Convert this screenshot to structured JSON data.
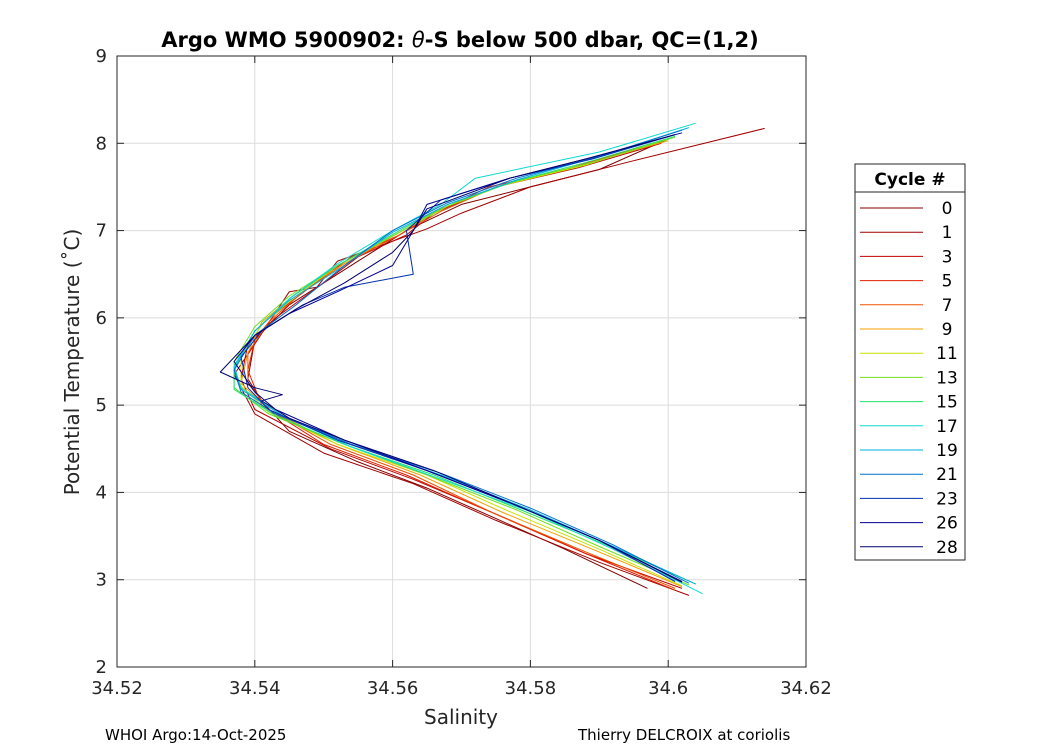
{
  "chart_data": {
    "type": "line",
    "title": "Argo WMO 5900902: θ-S below 500 dbar,  QC=(1,2)",
    "title_parts": {
      "before": "Argo WMO 5900902: ",
      "symbol": "θ",
      "after": "-S below 500 dbar,  QC=(1,2)"
    },
    "xlabel": "Salinity",
    "ylabel": "Potential Temperature (˚C)",
    "xlim": [
      34.52,
      34.62
    ],
    "ylim": [
      2,
      9
    ],
    "xticks": [
      34.52,
      34.54,
      34.56,
      34.58,
      34.6,
      34.62
    ],
    "xtick_labels": [
      "34.52",
      "34.54",
      "34.56",
      "34.58",
      "34.6",
      "34.62"
    ],
    "yticks": [
      2,
      3,
      4,
      5,
      6,
      7,
      8,
      9
    ],
    "ytick_labels": [
      "2",
      "3",
      "4",
      "5",
      "6",
      "7",
      "8",
      "9"
    ],
    "grid": true,
    "legend": {
      "title": "Cycle #",
      "placement": "outside-right"
    },
    "series": [
      {
        "name": "0",
        "color": "#800000",
        "points": [
          [
            34.6,
            8.05
          ],
          [
            34.59,
            7.7
          ],
          [
            34.58,
            7.5
          ],
          [
            34.57,
            7.3
          ],
          [
            34.562,
            7.0
          ],
          [
            34.555,
            6.65
          ],
          [
            34.545,
            6.15
          ],
          [
            34.54,
            5.75
          ],
          [
            34.539,
            5.3
          ],
          [
            34.541,
            5.05
          ],
          [
            34.545,
            4.7
          ],
          [
            34.555,
            4.35
          ],
          [
            34.565,
            4.05
          ],
          [
            34.575,
            3.7
          ],
          [
            34.585,
            3.35
          ],
          [
            34.597,
            2.9
          ]
        ]
      },
      {
        "name": "1",
        "color": "#a00000",
        "points": [
          [
            34.614,
            8.17
          ],
          [
            34.595,
            7.8
          ],
          [
            34.58,
            7.5
          ],
          [
            34.57,
            7.2
          ],
          [
            34.565,
            7.02
          ],
          [
            34.552,
            6.65
          ],
          [
            34.549,
            6.35
          ],
          [
            34.545,
            6.3
          ],
          [
            34.54,
            5.7
          ],
          [
            34.537,
            5.35
          ],
          [
            34.54,
            4.9
          ],
          [
            34.55,
            4.45
          ],
          [
            34.563,
            4.1
          ],
          [
            34.575,
            3.68
          ],
          [
            34.59,
            3.2
          ],
          [
            34.603,
            2.82
          ]
        ]
      },
      {
        "name": "3",
        "color": "#c00000",
        "points": [
          [
            34.599,
            8.0
          ],
          [
            34.587,
            7.72
          ],
          [
            34.575,
            7.5
          ],
          [
            34.566,
            7.2
          ],
          [
            34.562,
            6.95
          ],
          [
            34.555,
            6.7
          ],
          [
            34.55,
            6.4
          ],
          [
            34.543,
            6.0
          ],
          [
            34.539,
            5.7
          ],
          [
            34.538,
            5.3
          ],
          [
            34.54,
            4.95
          ],
          [
            34.551,
            4.5
          ],
          [
            34.563,
            4.15
          ],
          [
            34.576,
            3.72
          ],
          [
            34.588,
            3.3
          ],
          [
            34.602,
            2.9
          ]
        ]
      },
      {
        "name": "5",
        "color": "#e02000",
        "points": [
          [
            34.598,
            8.0
          ],
          [
            34.585,
            7.7
          ],
          [
            34.574,
            7.5
          ],
          [
            34.566,
            7.2
          ],
          [
            34.561,
            6.95
          ],
          [
            34.554,
            6.7
          ],
          [
            34.548,
            6.35
          ],
          [
            34.543,
            6.05
          ],
          [
            34.54,
            5.75
          ],
          [
            34.539,
            5.4
          ],
          [
            34.541,
            5.0
          ],
          [
            34.55,
            4.55
          ],
          [
            34.562,
            4.2
          ],
          [
            34.575,
            3.75
          ],
          [
            34.588,
            3.3
          ],
          [
            34.601,
            2.88
          ]
        ]
      },
      {
        "name": "7",
        "color": "#f05000",
        "points": [
          [
            34.599,
            8.02
          ],
          [
            34.586,
            7.72
          ],
          [
            34.575,
            7.5
          ],
          [
            34.567,
            7.22
          ],
          [
            34.561,
            6.95
          ],
          [
            34.553,
            6.62
          ],
          [
            34.547,
            6.3
          ],
          [
            34.542,
            5.95
          ],
          [
            34.539,
            5.6
          ],
          [
            34.539,
            5.25
          ],
          [
            34.542,
            4.95
          ],
          [
            34.551,
            4.55
          ],
          [
            34.563,
            4.2
          ],
          [
            34.575,
            3.75
          ],
          [
            34.588,
            3.32
          ],
          [
            34.601,
            2.9
          ]
        ]
      },
      {
        "name": "9",
        "color": "#f0a000",
        "points": [
          [
            34.6,
            8.03
          ],
          [
            34.587,
            7.74
          ],
          [
            34.576,
            7.52
          ],
          [
            34.567,
            7.25
          ],
          [
            34.561,
            6.98
          ],
          [
            34.553,
            6.62
          ],
          [
            34.546,
            6.28
          ],
          [
            34.541,
            5.95
          ],
          [
            34.539,
            5.6
          ],
          [
            34.538,
            5.25
          ],
          [
            34.542,
            4.95
          ],
          [
            34.552,
            4.55
          ],
          [
            34.564,
            4.2
          ],
          [
            34.576,
            3.77
          ],
          [
            34.589,
            3.35
          ],
          [
            34.602,
            2.92
          ]
        ]
      },
      {
        "name": "11",
        "color": "#c8e000",
        "points": [
          [
            34.6,
            8.05
          ],
          [
            34.588,
            7.75
          ],
          [
            34.576,
            7.52
          ],
          [
            34.568,
            7.28
          ],
          [
            34.561,
            6.98
          ],
          [
            34.552,
            6.6
          ],
          [
            34.546,
            6.25
          ],
          [
            34.541,
            5.92
          ],
          [
            34.538,
            5.55
          ],
          [
            34.538,
            5.22
          ],
          [
            34.542,
            4.92
          ],
          [
            34.552,
            4.55
          ],
          [
            34.565,
            4.2
          ],
          [
            34.577,
            3.78
          ],
          [
            34.59,
            3.35
          ],
          [
            34.602,
            2.93
          ]
        ]
      },
      {
        "name": "13",
        "color": "#70e020",
        "points": [
          [
            34.601,
            8.07
          ],
          [
            34.589,
            7.78
          ],
          [
            34.577,
            7.55
          ],
          [
            34.568,
            7.28
          ],
          [
            34.561,
            6.98
          ],
          [
            34.552,
            6.6
          ],
          [
            34.545,
            6.25
          ],
          [
            34.54,
            5.9
          ],
          [
            34.537,
            5.5
          ],
          [
            34.537,
            5.2
          ],
          [
            34.542,
            4.9
          ],
          [
            34.553,
            4.55
          ],
          [
            34.565,
            4.2
          ],
          [
            34.578,
            3.8
          ],
          [
            34.59,
            3.38
          ],
          [
            34.603,
            2.94
          ]
        ]
      },
      {
        "name": "15",
        "color": "#20e070",
        "points": [
          [
            34.601,
            8.08
          ],
          [
            34.589,
            7.8
          ],
          [
            34.578,
            7.57
          ],
          [
            34.568,
            7.3
          ],
          [
            34.561,
            7.0
          ],
          [
            34.552,
            6.6
          ],
          [
            34.545,
            6.22
          ],
          [
            34.54,
            5.85
          ],
          [
            34.537,
            5.45
          ],
          [
            34.537,
            5.18
          ],
          [
            34.543,
            4.88
          ],
          [
            34.553,
            4.55
          ],
          [
            34.566,
            4.2
          ],
          [
            34.578,
            3.82
          ],
          [
            34.591,
            3.4
          ],
          [
            34.604,
            2.95
          ]
        ]
      },
      {
        "name": "17",
        "color": "#10d8d0",
        "points": [
          [
            34.604,
            8.23
          ],
          [
            34.59,
            7.9
          ],
          [
            34.572,
            7.6
          ],
          [
            34.567,
            7.3
          ],
          [
            34.56,
            7.0
          ],
          [
            34.552,
            6.62
          ],
          [
            34.545,
            6.22
          ],
          [
            34.54,
            5.85
          ],
          [
            34.537,
            5.45
          ],
          [
            34.538,
            5.2
          ],
          [
            34.544,
            4.88
          ],
          [
            34.554,
            4.52
          ],
          [
            34.566,
            4.18
          ],
          [
            34.58,
            3.78
          ],
          [
            34.592,
            3.35
          ],
          [
            34.605,
            2.84
          ]
        ]
      },
      {
        "name": "19",
        "color": "#00b0e0",
        "points": [
          [
            34.603,
            8.18
          ],
          [
            34.59,
            7.85
          ],
          [
            34.578,
            7.58
          ],
          [
            34.568,
            7.3
          ],
          [
            34.56,
            6.98
          ],
          [
            34.553,
            6.6
          ],
          [
            34.545,
            6.2
          ],
          [
            34.54,
            5.85
          ],
          [
            34.537,
            5.42
          ],
          [
            34.538,
            5.18
          ],
          [
            34.544,
            4.88
          ],
          [
            34.554,
            4.55
          ],
          [
            34.567,
            4.2
          ],
          [
            34.58,
            3.8
          ],
          [
            34.592,
            3.38
          ],
          [
            34.604,
            2.95
          ]
        ]
      },
      {
        "name": "21",
        "color": "#0070d0",
        "points": [
          [
            34.602,
            8.15
          ],
          [
            34.59,
            7.85
          ],
          [
            34.578,
            7.6
          ],
          [
            34.568,
            7.32
          ],
          [
            34.56,
            7.0
          ],
          [
            34.553,
            6.6
          ],
          [
            34.546,
            6.15
          ],
          [
            34.54,
            5.8
          ],
          [
            34.537,
            5.4
          ],
          [
            34.538,
            5.15
          ],
          [
            34.543,
            4.9
          ],
          [
            34.554,
            4.55
          ],
          [
            34.567,
            4.22
          ],
          [
            34.58,
            3.82
          ],
          [
            34.592,
            3.4
          ],
          [
            34.603,
            2.96
          ]
        ]
      },
      {
        "name": "23",
        "color": "#0030b0",
        "points": [
          [
            34.601,
            8.1
          ],
          [
            34.589,
            7.82
          ],
          [
            34.577,
            7.6
          ],
          [
            34.567,
            7.35
          ],
          [
            34.562,
            7.0
          ],
          [
            34.563,
            6.5
          ],
          [
            34.553,
            6.35
          ],
          [
            34.547,
            6.15
          ],
          [
            34.541,
            5.85
          ],
          [
            34.538,
            5.55
          ],
          [
            34.539,
            5.2
          ],
          [
            34.542,
            4.95
          ],
          [
            34.552,
            4.6
          ],
          [
            34.565,
            4.25
          ],
          [
            34.578,
            3.85
          ],
          [
            34.59,
            3.45
          ],
          [
            34.601,
            2.98
          ]
        ]
      },
      {
        "name": "26",
        "color": "#000090",
        "points": [
          [
            34.602,
            8.12
          ],
          [
            34.589,
            7.84
          ],
          [
            34.577,
            7.6
          ],
          [
            34.565,
            7.3
          ],
          [
            34.563,
            7.0
          ],
          [
            34.56,
            6.6
          ],
          [
            34.552,
            6.3
          ],
          [
            34.545,
            6.05
          ],
          [
            34.54,
            5.8
          ],
          [
            34.537,
            5.5
          ],
          [
            34.54,
            5.15
          ],
          [
            34.543,
            4.95
          ],
          [
            34.553,
            4.6
          ],
          [
            34.565,
            4.25
          ],
          [
            34.578,
            3.85
          ],
          [
            34.59,
            3.45
          ],
          [
            34.602,
            2.97
          ]
        ]
      },
      {
        "name": "28",
        "color": "#000070",
        "points": [
          [
            34.601,
            8.1
          ],
          [
            34.588,
            7.82
          ],
          [
            34.577,
            7.6
          ],
          [
            34.565,
            7.25
          ],
          [
            34.563,
            7.0
          ],
          [
            34.56,
            6.75
          ],
          [
            34.553,
            6.4
          ],
          [
            34.546,
            6.1
          ],
          [
            34.54,
            5.8
          ],
          [
            34.535,
            5.38
          ],
          [
            34.54,
            5.2
          ],
          [
            34.544,
            5.12
          ],
          [
            34.541,
            5.05
          ],
          [
            34.545,
            4.85
          ],
          [
            34.553,
            4.6
          ],
          [
            34.566,
            4.25
          ],
          [
            34.578,
            3.85
          ],
          [
            34.59,
            3.45
          ],
          [
            34.602,
            2.98
          ]
        ]
      }
    ]
  },
  "footer": {
    "left": "WHOI Argo:14-Oct-2025",
    "right": "Thierry DELCROIX at coriolis"
  }
}
